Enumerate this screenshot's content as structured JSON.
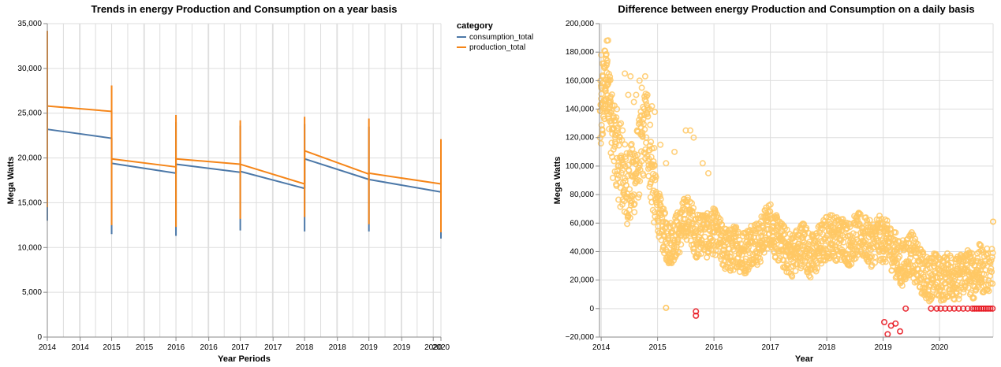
{
  "chart_data": [
    {
      "type": "line",
      "title": "Trends in energy Production and Consumption on a year basis",
      "xlabel": "Year Periods",
      "ylabel": "Mega Watts",
      "ylim": [
        0,
        35000
      ],
      "y_ticks": [
        "0",
        "5,000",
        "10,000",
        "15,000",
        "20,000",
        "25,000",
        "30,000",
        "35,000"
      ],
      "y_tick_values": [
        0,
        5000,
        10000,
        15000,
        20000,
        25000,
        30000,
        35000
      ],
      "x_ticks": [
        "2014",
        "2014",
        "2015",
        "2015",
        "2016",
        "2016",
        "2017",
        "2017",
        "2018",
        "2018",
        "2019",
        "2019",
        "2020",
        "2020"
      ],
      "x_tick_values": [
        2013.88,
        2014.39,
        2014.88,
        2015.39,
        2015.88,
        2016.39,
        2016.88,
        2017.39,
        2017.88,
        2018.39,
        2018.88,
        2019.39,
        2019.88,
        2020.0
      ],
      "xlim": [
        2013.88,
        2020.0
      ],
      "grid": true,
      "legend": {
        "title": "category",
        "placement": "top-right"
      },
      "series": [
        {
          "name": "consumption_total",
          "color": "#4c78a8",
          "segments": [
            {
              "x0": 2013.88,
              "x1": 2014.88,
              "start": 23200,
              "end": 22200,
              "spike_min": 13000,
              "spike_max": 23200
            },
            {
              "x0": 2014.88,
              "x1": 2015.88,
              "start": 19400,
              "end": 18300,
              "spike_min": 11500,
              "spike_max": 22200
            },
            {
              "x0": 2015.88,
              "x1": 2016.88,
              "start": 19300,
              "end": 18400,
              "spike_min": 11300,
              "spike_max": 24000
            },
            {
              "x0": 2016.88,
              "x1": 2017.88,
              "start": 18500,
              "end": 16600,
              "spike_min": 11900,
              "spike_max": 23600
            },
            {
              "x0": 2017.88,
              "x1": 2018.88,
              "start": 19900,
              "end": 17600,
              "spike_min": 11800,
              "spike_max": 23800
            },
            {
              "x0": 2018.88,
              "x1": 2020.0,
              "start": 17600,
              "end": 16200,
              "spike_min": 11800,
              "spike_max": 23500
            },
            {
              "x0": 2020.0,
              "x1": 2020.0,
              "start": 16200,
              "end": 16200,
              "spike_min": 11000,
              "spike_max": 16200
            }
          ]
        },
        {
          "name": "production_total",
          "color": "#f58518",
          "segments": [
            {
              "x0": 2013.88,
              "x1": 2014.88,
              "start": 25800,
              "end": 25200,
              "spike_min": 14500,
              "spike_max": 34200
            },
            {
              "x0": 2014.88,
              "x1": 2015.88,
              "start": 19900,
              "end": 19000,
              "spike_min": 12500,
              "spike_max": 28100
            },
            {
              "x0": 2015.88,
              "x1": 2016.88,
              "start": 19900,
              "end": 19300,
              "spike_min": 12300,
              "spike_max": 24800
            },
            {
              "x0": 2016.88,
              "x1": 2017.88,
              "start": 19300,
              "end": 17100,
              "spike_min": 13200,
              "spike_max": 24200
            },
            {
              "x0": 2017.88,
              "x1": 2018.88,
              "start": 20800,
              "end": 18200,
              "spike_min": 13400,
              "spike_max": 24600
            },
            {
              "x0": 2018.88,
              "x1": 2020.0,
              "start": 18300,
              "end": 17100,
              "spike_min": 12600,
              "spike_max": 24400
            },
            {
              "x0": 2020.0,
              "x1": 2020.0,
              "start": 17100,
              "end": 17100,
              "spike_min": 11700,
              "spike_max": 22100
            }
          ]
        }
      ]
    },
    {
      "type": "scatter",
      "title": "Difference between energy Production and Consumption on a daily basis",
      "xlabel": "Year",
      "ylabel": "Mega Watts",
      "ylim": [
        -20000,
        200000
      ],
      "y_ticks": [
        "−20,000",
        "0",
        "20,000",
        "40,000",
        "60,000",
        "80,000",
        "100,000",
        "120,000",
        "140,000",
        "160,000",
        "180,000",
        "200,000"
      ],
      "y_tick_values": [
        -20000,
        0,
        20000,
        40000,
        60000,
        80000,
        100000,
        120000,
        140000,
        160000,
        180000,
        200000
      ],
      "x_ticks": [
        "2014",
        "2015",
        "2016",
        "2017",
        "2018",
        "2019",
        "2020"
      ],
      "x_tick_values": [
        2014.0,
        2015.0,
        2016.0,
        2017.0,
        2018.0,
        2019.0,
        2020.0
      ],
      "xlim": [
        2013.97,
        2020.95
      ],
      "grid": true,
      "positive_color": "#ffc864",
      "negative_color": "#e8101a",
      "point_series": {
        "name": "daily difference",
        "generator_note": "",
        "anchors": [
          [
            2013.98,
            130000
          ],
          [
            2014.05,
            150000
          ],
          [
            2014.12,
            165000
          ],
          [
            2014.2,
            120000
          ],
          [
            2014.3,
            105000
          ],
          [
            2014.4,
            90000
          ],
          [
            2014.5,
            85000
          ],
          [
            2014.6,
            95000
          ],
          [
            2014.7,
            110000
          ],
          [
            2014.8,
            130000
          ],
          [
            2014.9,
            95000
          ],
          [
            2015.0,
            70000
          ],
          [
            2015.1,
            55000
          ],
          [
            2015.2,
            45000
          ],
          [
            2015.3,
            50000
          ],
          [
            2015.4,
            55000
          ],
          [
            2015.5,
            65000
          ],
          [
            2015.6,
            60000
          ],
          [
            2015.7,
            50000
          ],
          [
            2015.8,
            55000
          ],
          [
            2015.9,
            50000
          ],
          [
            2016.0,
            55000
          ],
          [
            2016.1,
            48000
          ],
          [
            2016.2,
            42000
          ],
          [
            2016.3,
            40000
          ],
          [
            2016.4,
            45000
          ],
          [
            2016.5,
            38000
          ],
          [
            2016.6,
            42000
          ],
          [
            2016.7,
            48000
          ],
          [
            2016.8,
            45000
          ],
          [
            2016.9,
            55000
          ],
          [
            2017.0,
            60000
          ],
          [
            2017.1,
            50000
          ],
          [
            2017.2,
            45000
          ],
          [
            2017.3,
            40000
          ],
          [
            2017.4,
            38000
          ],
          [
            2017.5,
            42000
          ],
          [
            2017.6,
            48000
          ],
          [
            2017.7,
            35000
          ],
          [
            2017.8,
            40000
          ],
          [
            2017.9,
            45000
          ],
          [
            2018.0,
            50000
          ],
          [
            2018.1,
            52000
          ],
          [
            2018.2,
            48000
          ],
          [
            2018.3,
            50000
          ],
          [
            2018.4,
            45000
          ],
          [
            2018.5,
            50000
          ],
          [
            2018.6,
            52000
          ],
          [
            2018.7,
            48000
          ],
          [
            2018.8,
            45000
          ],
          [
            2018.9,
            50000
          ],
          [
            2019.0,
            48000
          ],
          [
            2019.1,
            45000
          ],
          [
            2019.2,
            40000
          ],
          [
            2019.3,
            30000
          ],
          [
            2019.4,
            35000
          ],
          [
            2019.5,
            40000
          ],
          [
            2019.6,
            30000
          ],
          [
            2019.7,
            25000
          ],
          [
            2019.8,
            20000
          ],
          [
            2019.9,
            25000
          ],
          [
            2020.0,
            20000
          ],
          [
            2020.1,
            22000
          ],
          [
            2020.2,
            25000
          ],
          [
            2020.3,
            20000
          ],
          [
            2020.4,
            25000
          ],
          [
            2020.5,
            28000
          ],
          [
            2020.6,
            22000
          ],
          [
            2020.7,
            30000
          ],
          [
            2020.8,
            25000
          ],
          [
            2020.95,
            30000
          ]
        ],
        "negative_points": [
          [
            2015.68,
            -2000
          ],
          [
            2015.68,
            -5000
          ],
          [
            2019.02,
            -9500
          ],
          [
            2019.08,
            -18000
          ],
          [
            2019.14,
            -12000
          ],
          [
            2019.22,
            -10500
          ],
          [
            2019.3,
            -16000
          ],
          [
            2019.4,
            0
          ],
          [
            2019.85,
            0
          ],
          [
            2019.95,
            0
          ],
          [
            2020.02,
            0
          ],
          [
            2020.1,
            0
          ],
          [
            2020.18,
            0
          ],
          [
            2020.26,
            0
          ],
          [
            2020.34,
            0
          ],
          [
            2020.42,
            0
          ],
          [
            2020.5,
            0
          ],
          [
            2020.58,
            0
          ],
          [
            2020.62,
            0
          ],
          [
            2020.66,
            0
          ],
          [
            2020.7,
            0
          ],
          [
            2020.74,
            0
          ],
          [
            2020.78,
            0
          ],
          [
            2020.82,
            0
          ],
          [
            2020.86,
            0
          ],
          [
            2020.9,
            0
          ],
          [
            2020.94,
            0
          ]
        ],
        "high_points": [
          [
            2014.0,
            178000
          ],
          [
            2014.02,
            172000
          ],
          [
            2014.06,
            181000
          ],
          [
            2014.08,
            155000
          ],
          [
            2014.1,
            188000
          ],
          [
            2014.14,
            160000
          ],
          [
            2014.16,
            148000
          ],
          [
            2014.22,
            135000
          ],
          [
            2014.28,
            140000
          ],
          [
            2014.35,
            130000
          ],
          [
            2014.42,
            165000
          ],
          [
            2014.48,
            150000
          ],
          [
            2014.52,
            163000
          ],
          [
            2014.58,
            145000
          ],
          [
            2014.62,
            150000
          ],
          [
            2014.68,
            160000
          ],
          [
            2014.72,
            155000
          ],
          [
            2014.78,
            163000
          ],
          [
            2014.82,
            150000
          ],
          [
            2014.86,
            140000
          ],
          [
            2014.9,
            142000
          ],
          [
            2014.95,
            138000
          ],
          [
            2015.05,
            115000
          ],
          [
            2015.15,
            102000
          ],
          [
            2015.3,
            110000
          ],
          [
            2015.5,
            125000
          ],
          [
            2015.58,
            125000
          ],
          [
            2015.64,
            120000
          ],
          [
            2015.8,
            102000
          ],
          [
            2015.9,
            95000
          ],
          [
            2014.25,
            120000
          ],
          [
            2014.55,
            112000
          ],
          [
            2014.38,
            125000
          ]
        ]
      }
    }
  ]
}
